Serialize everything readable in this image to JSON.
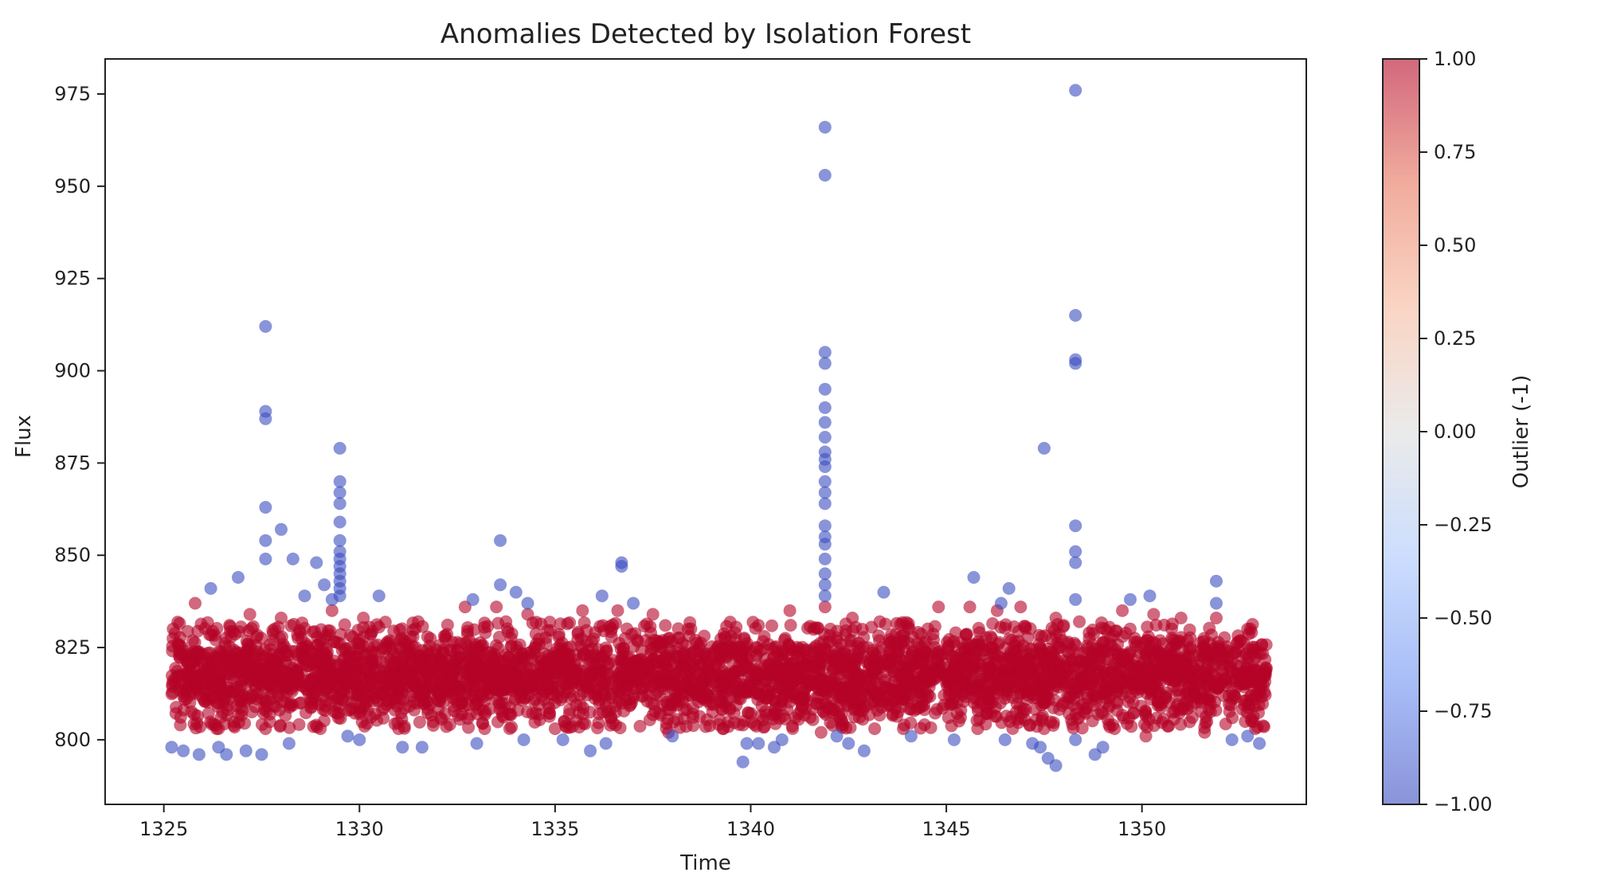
{
  "chart_data": {
    "type": "scatter",
    "title": "Anomalies Detected by Isolation Forest",
    "xlabel": "Time",
    "ylabel": "Flux",
    "xlim": [
      1323.5,
      1354.2
    ],
    "ylim": [
      782.5,
      984.5
    ],
    "x_ticks": [
      1325,
      1330,
      1335,
      1340,
      1345,
      1350
    ],
    "y_ticks": [
      800,
      825,
      850,
      875,
      900,
      925,
      950,
      975
    ],
    "grid": false,
    "colorbar": {
      "label": "Outlier (-1)",
      "colormap": "coolwarm",
      "range": [
        -1.0,
        1.0
      ],
      "ticks": [
        "−1.00",
        "−0.75",
        "−0.50",
        "−0.25",
        "0.00",
        "0.25",
        "0.50",
        "0.75",
        "1.00"
      ],
      "colors": [
        "#3b4cc0",
        "#6f92f3",
        "#aac7fd",
        "#dddddd",
        "#f7b89c",
        "#e7745b",
        "#b40426"
      ]
    },
    "marker_alpha": 0.6,
    "series": [
      {
        "label_value": 1,
        "color": "#b40426",
        "band": {
          "x_range": [
            1325.2,
            1353.2
          ],
          "y_range": [
            803,
            832
          ],
          "note_omitted": "dense band of inlier points"
        },
        "points": [
          [
            1325.8,
            837
          ],
          [
            1327.2,
            834
          ],
          [
            1328.0,
            833
          ],
          [
            1329.3,
            835
          ],
          [
            1330.1,
            833
          ],
          [
            1331.5,
            832
          ],
          [
            1332.7,
            836
          ],
          [
            1333.5,
            836
          ],
          [
            1334.3,
            834
          ],
          [
            1335.7,
            835
          ],
          [
            1336.6,
            835
          ],
          [
            1337.5,
            834
          ],
          [
            1338.4,
            830
          ],
          [
            1339.6,
            829
          ],
          [
            1340.2,
            831
          ],
          [
            1341.0,
            835
          ],
          [
            1341.9,
            836
          ],
          [
            1342.6,
            833
          ],
          [
            1343.3,
            832
          ],
          [
            1344.8,
            836
          ],
          [
            1345.6,
            836
          ],
          [
            1346.3,
            835
          ],
          [
            1346.9,
            836
          ],
          [
            1347.8,
            833
          ],
          [
            1348.4,
            832
          ],
          [
            1349.5,
            835
          ],
          [
            1350.3,
            834
          ],
          [
            1351.0,
            833
          ],
          [
            1351.9,
            833
          ],
          [
            1352.7,
            830
          ],
          [
            1326.4,
            803
          ],
          [
            1327.6,
            803
          ],
          [
            1329.0,
            803
          ],
          [
            1331.0,
            803
          ],
          [
            1333.2,
            803
          ],
          [
            1335.0,
            803
          ],
          [
            1337.9,
            802
          ],
          [
            1339.3,
            803
          ],
          [
            1341.8,
            802
          ],
          [
            1343.9,
            803
          ],
          [
            1345.8,
            803
          ],
          [
            1347.5,
            803
          ],
          [
            1349.3,
            803
          ],
          [
            1350.1,
            801
          ],
          [
            1351.6,
            802
          ],
          [
            1352.9,
            803
          ]
        ]
      },
      {
        "label_value": -1,
        "color": "#3b4cc0",
        "points": [
          [
            1325.2,
            798
          ],
          [
            1325.5,
            797
          ],
          [
            1325.9,
            796
          ],
          [
            1326.2,
            841
          ],
          [
            1326.4,
            798
          ],
          [
            1326.6,
            796
          ],
          [
            1326.9,
            844
          ],
          [
            1327.1,
            797
          ],
          [
            1327.5,
            796
          ],
          [
            1327.6,
            912
          ],
          [
            1327.6,
            889
          ],
          [
            1327.6,
            887
          ],
          [
            1327.6,
            863
          ],
          [
            1327.6,
            854
          ],
          [
            1327.6,
            849
          ],
          [
            1328.0,
            857
          ],
          [
            1328.3,
            849
          ],
          [
            1328.6,
            839
          ],
          [
            1328.2,
            799
          ],
          [
            1328.9,
            848
          ],
          [
            1329.1,
            842
          ],
          [
            1329.3,
            838
          ],
          [
            1329.5,
            879
          ],
          [
            1329.5,
            870
          ],
          [
            1329.5,
            867
          ],
          [
            1329.5,
            864
          ],
          [
            1329.5,
            859
          ],
          [
            1329.5,
            854
          ],
          [
            1329.5,
            851
          ],
          [
            1329.5,
            849
          ],
          [
            1329.5,
            847
          ],
          [
            1329.5,
            845
          ],
          [
            1329.5,
            843
          ],
          [
            1329.5,
            841
          ],
          [
            1329.5,
            839
          ],
          [
            1329.7,
            801
          ],
          [
            1330.0,
            800
          ],
          [
            1330.5,
            839
          ],
          [
            1331.1,
            798
          ],
          [
            1331.6,
            798
          ],
          [
            1332.9,
            838
          ],
          [
            1333.0,
            799
          ],
          [
            1333.6,
            854
          ],
          [
            1333.6,
            842
          ],
          [
            1334.0,
            840
          ],
          [
            1334.3,
            837
          ],
          [
            1334.2,
            800
          ],
          [
            1335.2,
            800
          ],
          [
            1335.9,
            797
          ],
          [
            1336.2,
            839
          ],
          [
            1336.3,
            799
          ],
          [
            1336.7,
            848
          ],
          [
            1336.7,
            847
          ],
          [
            1337.0,
            837
          ],
          [
            1338.0,
            801
          ],
          [
            1339.8,
            794
          ],
          [
            1339.9,
            799
          ],
          [
            1340.2,
            799
          ],
          [
            1340.6,
            798
          ],
          [
            1340.8,
            800
          ],
          [
            1341.9,
            966
          ],
          [
            1341.9,
            953
          ],
          [
            1341.9,
            905
          ],
          [
            1341.9,
            902
          ],
          [
            1341.9,
            895
          ],
          [
            1341.9,
            890
          ],
          [
            1341.9,
            886
          ],
          [
            1341.9,
            882
          ],
          [
            1341.9,
            878
          ],
          [
            1341.9,
            876
          ],
          [
            1341.9,
            874
          ],
          [
            1341.9,
            870
          ],
          [
            1341.9,
            867
          ],
          [
            1341.9,
            864
          ],
          [
            1341.9,
            858
          ],
          [
            1341.9,
            855
          ],
          [
            1341.9,
            853
          ],
          [
            1341.9,
            849
          ],
          [
            1341.9,
            845
          ],
          [
            1341.9,
            842
          ],
          [
            1341.9,
            839
          ],
          [
            1342.2,
            801
          ],
          [
            1342.5,
            799
          ],
          [
            1342.9,
            797
          ],
          [
            1343.4,
            840
          ],
          [
            1344.1,
            801
          ],
          [
            1345.2,
            800
          ],
          [
            1345.7,
            844
          ],
          [
            1346.4,
            837
          ],
          [
            1346.6,
            841
          ],
          [
            1346.5,
            800
          ],
          [
            1347.2,
            799
          ],
          [
            1347.5,
            879
          ],
          [
            1347.6,
            795
          ],
          [
            1347.8,
            793
          ],
          [
            1347.4,
            798
          ],
          [
            1348.3,
            976
          ],
          [
            1348.3,
            915
          ],
          [
            1348.3,
            903
          ],
          [
            1348.3,
            902
          ],
          [
            1348.3,
            858
          ],
          [
            1348.3,
            851
          ],
          [
            1348.3,
            848
          ],
          [
            1348.3,
            838
          ],
          [
            1348.3,
            800
          ],
          [
            1348.8,
            796
          ],
          [
            1349.0,
            798
          ],
          [
            1349.7,
            838
          ],
          [
            1350.2,
            839
          ],
          [
            1351.9,
            843
          ],
          [
            1351.9,
            837
          ],
          [
            1352.3,
            800
          ],
          [
            1352.7,
            801
          ],
          [
            1353.0,
            799
          ]
        ]
      }
    ]
  }
}
